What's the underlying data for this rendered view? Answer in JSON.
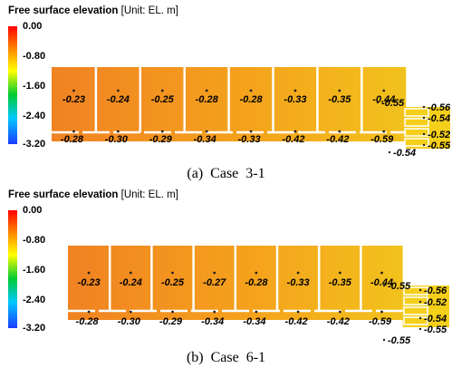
{
  "legend_title": {
    "bold": "Free surface elevation",
    "unit": " [Unit: EL. m]"
  },
  "colorbar_ticks": [
    "0.00",
    "-0.80",
    "-1.60",
    "-2.40",
    "-3.20"
  ],
  "colors": {
    "basin_top": "#f08222",
    "basin_mid": "#f5a21c",
    "basin_right": "#f2c21c",
    "outlet": "#f5cf1a",
    "walls": "#ffffff"
  },
  "panels": [
    {
      "caption": "(a)  Case  3-1",
      "top_row": [
        "-0.23",
        "-0.24",
        "-0.25",
        "-0.28",
        "-0.28",
        "-0.33",
        "-0.35",
        "-0.44"
      ],
      "bottom_row": [
        "-0.28",
        "-0.30",
        "-0.29",
        "-0.34",
        "-0.33",
        "-0.42",
        "-0.42",
        "-0.59"
      ],
      "outlet": [
        "-0.55",
        "-0.56",
        "-0.54",
        "-0.52",
        "-0.55",
        "-0.54"
      ]
    },
    {
      "caption": "(b)  Case  6-1",
      "top_row": [
        "-0.23",
        "-0.24",
        "-0.25",
        "-0.27",
        "-0.28",
        "-0.33",
        "-0.35",
        "-0.44"
      ],
      "bottom_row": [
        "-0.28",
        "-0.30",
        "-0.29",
        "-0.34",
        "-0.34",
        "-0.42",
        "-0.42",
        "-0.59"
      ],
      "outlet": [
        "-0.55",
        "-0.56",
        "-0.52",
        "-0.54",
        "-0.55",
        "-0.55"
      ]
    }
  ]
}
